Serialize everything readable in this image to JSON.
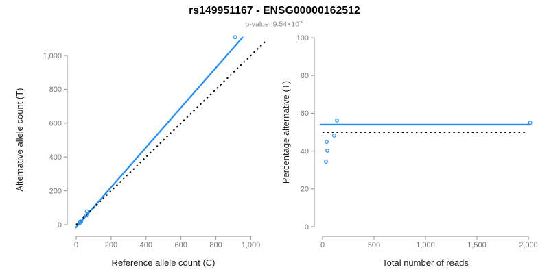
{
  "header": {
    "title": "rs149951167 - ENSG00000162512",
    "pvalue_prefix": "p-value: 9.54×10",
    "pvalue_exponent": "-4"
  },
  "colors": {
    "accent_blue": "#1E8EFF",
    "dotted_line": "#000000",
    "axis_line": "#8c8c8c",
    "tick_label": "#757575",
    "axis_title": "#1a1a1a",
    "subtitle_gray": "#8c8c8c"
  },
  "chart_data": [
    {
      "id": "allele-count-scatter",
      "type": "scatter",
      "xlabel": "Reference allele count (C)",
      "ylabel": "Alternative allele count (T)",
      "xlim": [
        0,
        1000
      ],
      "ylim": [
        0,
        1000
      ],
      "grid": false,
      "xticks": {
        "values": [
          0,
          200,
          400,
          600,
          800,
          1000
        ],
        "labels": [
          "0",
          "200",
          "400",
          "600",
          "800",
          "1,000"
        ]
      },
      "yticks": {
        "values": [
          0,
          200,
          400,
          600,
          800,
          1000
        ],
        "labels": [
          "0",
          "200",
          "400",
          "600",
          "800",
          "1,000"
        ]
      },
      "points": [
        [
          21.6,
          11.4
        ],
        [
          22,
          18
        ],
        [
          28,
          19
        ],
        [
          58.5,
          54.5
        ],
        [
          61,
          79
        ],
        [
          910,
          1108
        ]
      ],
      "lines": [
        {
          "name": "fit-line",
          "style": "solid",
          "color": "accent_blue",
          "x1": -5,
          "y1": -20,
          "x2": 955,
          "y2": 1110
        },
        {
          "name": "identity-line",
          "style": "dotted",
          "color": "dotted_line",
          "x1": 0,
          "y1": 0,
          "x2": 1090,
          "y2": 1090
        }
      ]
    },
    {
      "id": "percentage-scatter",
      "type": "scatter",
      "xlabel": "Total number of reads",
      "ylabel": "Percentage alternative (T)",
      "xlim": [
        0,
        2000
      ],
      "ylim": [
        0,
        100
      ],
      "grid": false,
      "xticks": {
        "values": [
          0,
          500,
          1000,
          1500,
          2000
        ],
        "labels": [
          "0",
          "500",
          "1,000",
          "1,500",
          "2,000"
        ]
      },
      "yticks": {
        "values": [
          0,
          20,
          40,
          60,
          80,
          100
        ],
        "labels": [
          "0",
          "20",
          "40",
          "60",
          "80",
          "100"
        ]
      },
      "points": [
        [
          33,
          34.4
        ],
        [
          40,
          44.9
        ],
        [
          47,
          40.2
        ],
        [
          113,
          48.2
        ],
        [
          140,
          56.2
        ],
        [
          2018,
          55
        ]
      ],
      "lines": [
        {
          "name": "mean-percentage-line",
          "style": "solid",
          "color": "accent_blue",
          "x1": -25,
          "y1": 54,
          "x2": 2025,
          "y2": 54
        },
        {
          "name": "fifty-percent-line",
          "style": "dotted",
          "color": "dotted_line",
          "x1": 0,
          "y1": 50,
          "x2": 1990,
          "y2": 50
        }
      ]
    }
  ]
}
